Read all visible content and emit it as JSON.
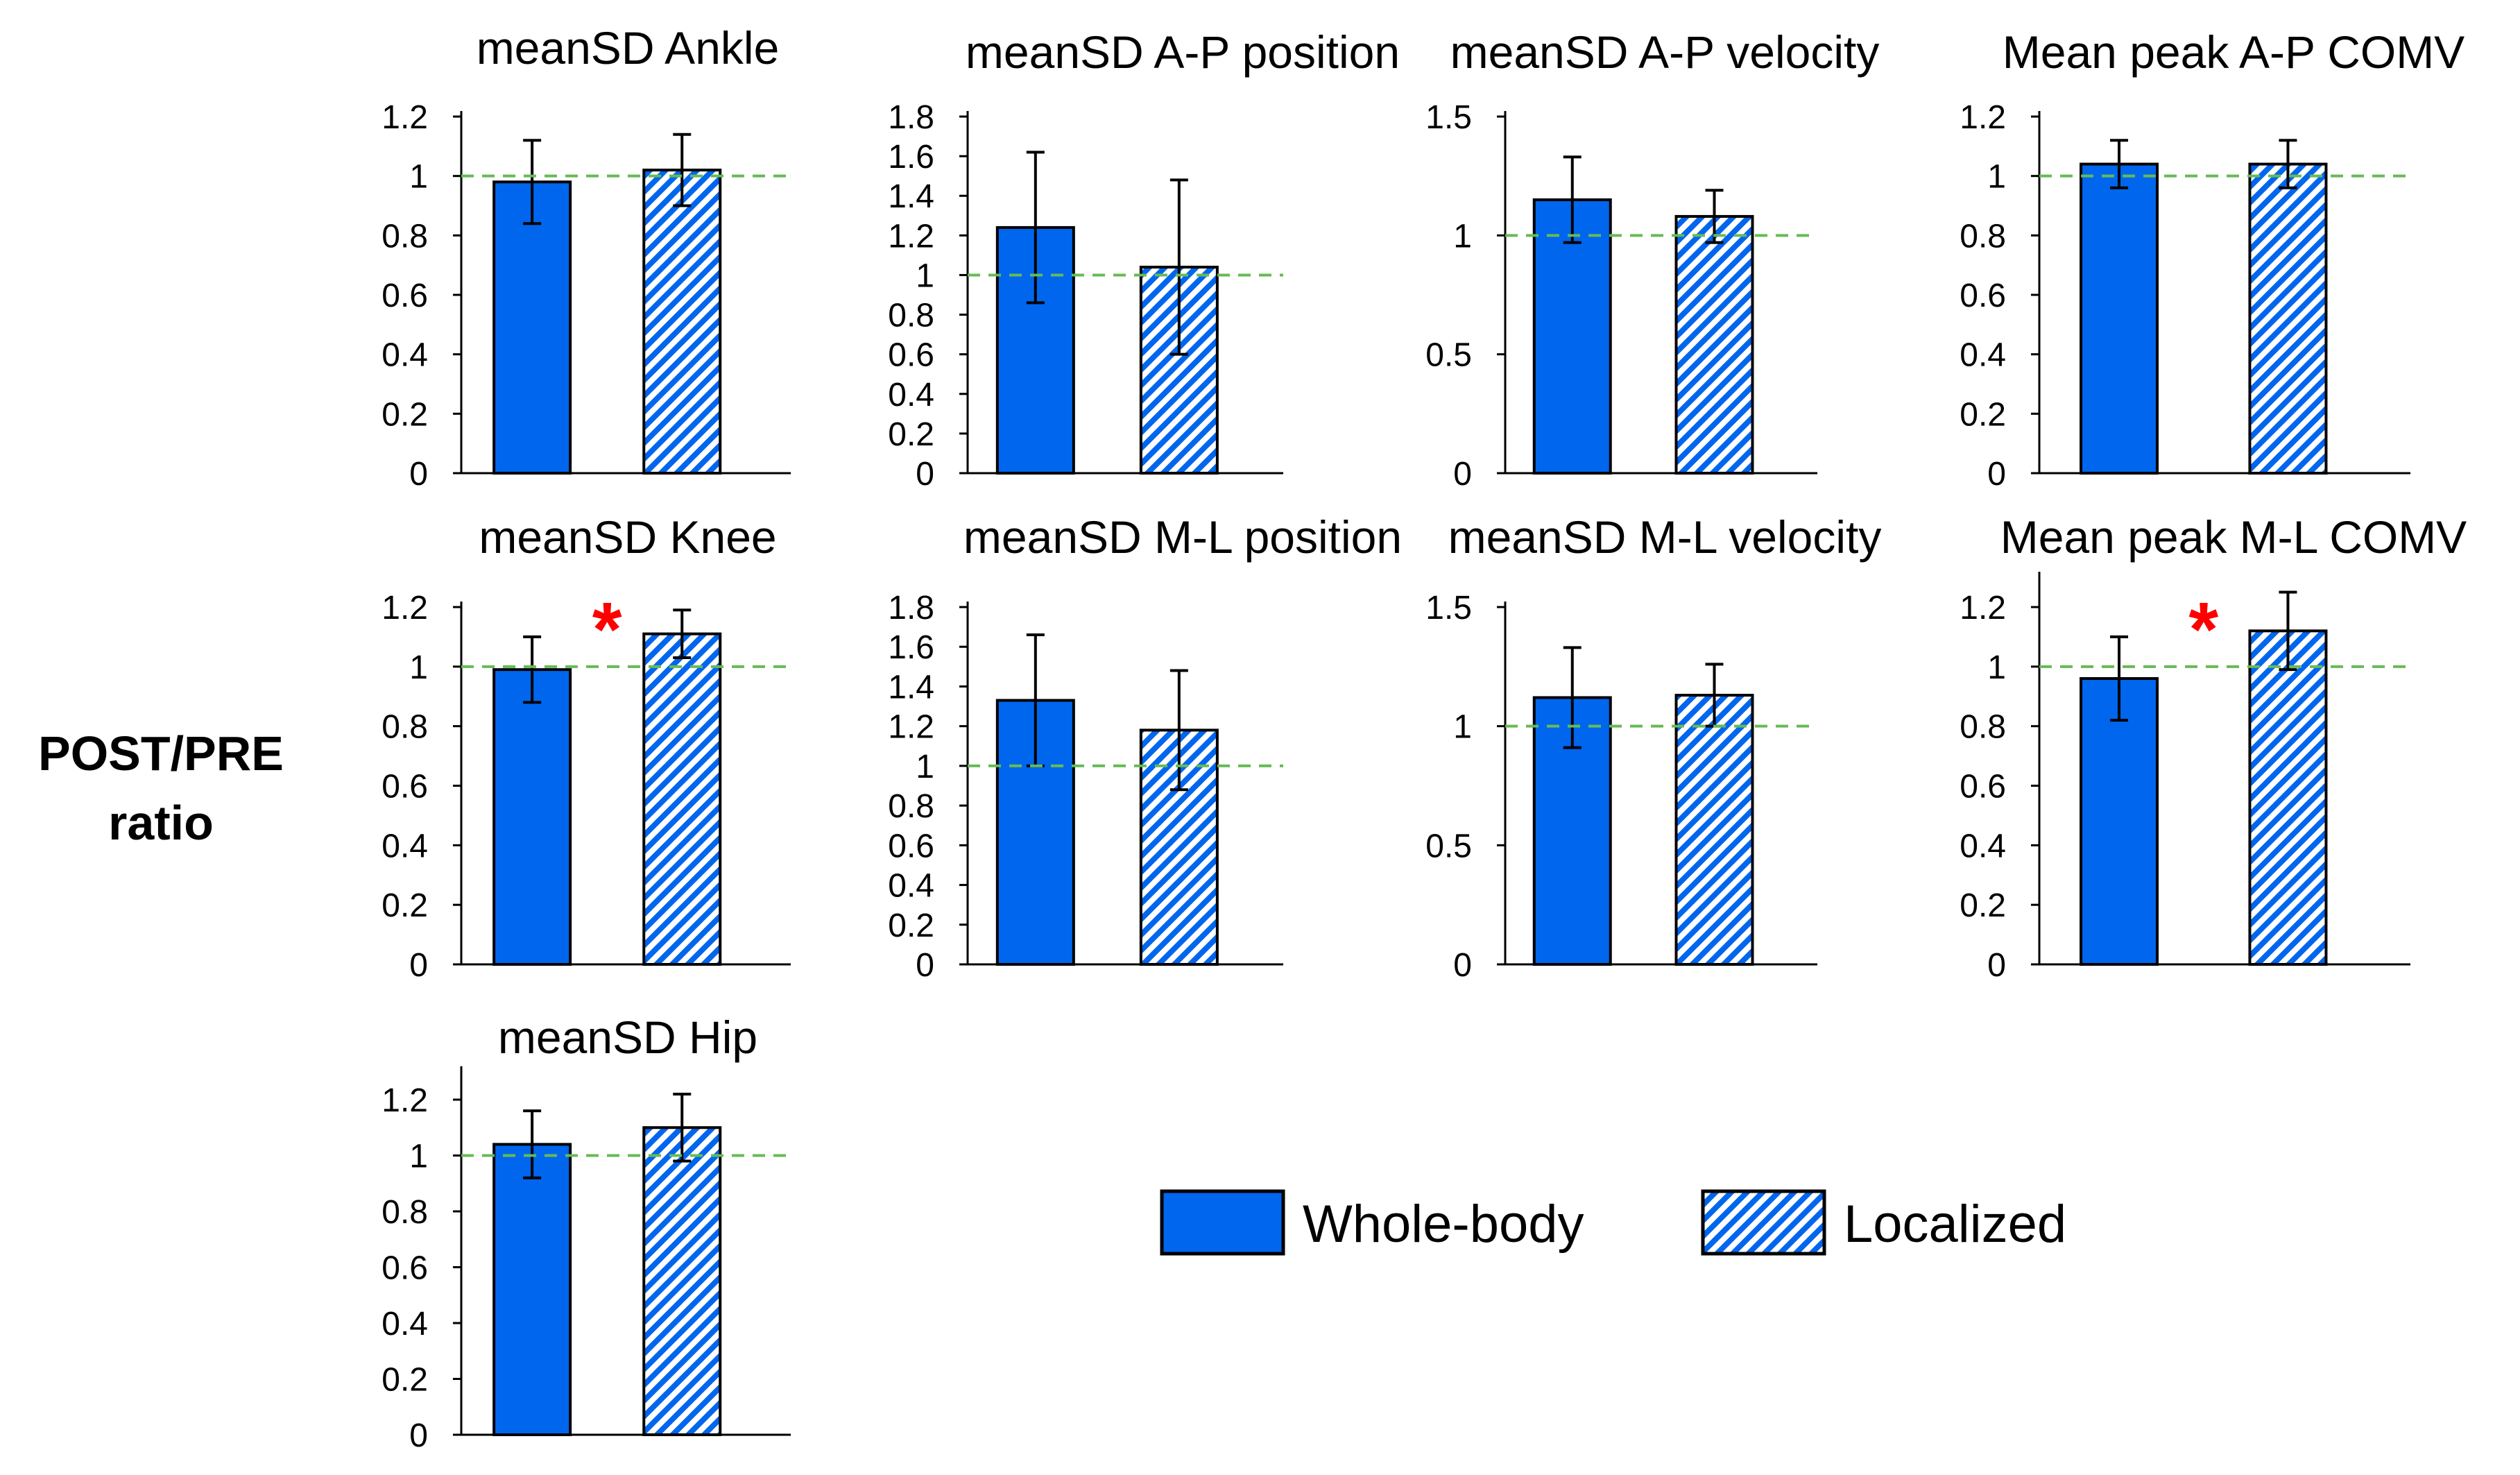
{
  "figure": {
    "ylabel_line1": "POST/PRE",
    "ylabel_line2": "ratio",
    "colors": {
      "whole_body": "#0066ee",
      "localized_stripe": "#0066ee",
      "reference_line": "#66bb55",
      "significance": "#ff0000"
    }
  },
  "legend": [
    {
      "name": "Whole-body",
      "style": "solid"
    },
    {
      "name": "Localized",
      "style": "hatched"
    }
  ],
  "chart_data": [
    {
      "type": "bar",
      "title": "meanSD Ankle",
      "categories": [
        "Whole-body",
        "Localized"
      ],
      "values": [
        0.98,
        1.02
      ],
      "errors": [
        0.14,
        0.12
      ],
      "ylim": [
        0,
        1.2
      ],
      "ticks": [
        0,
        0.2,
        0.4,
        0.6,
        0.8,
        1,
        1.2
      ],
      "reference": 1,
      "significant": false
    },
    {
      "type": "bar",
      "title": "meanSD A-P position",
      "categories": [
        "Whole-body",
        "Localized"
      ],
      "values": [
        1.24,
        1.04
      ],
      "errors": [
        0.38,
        0.44
      ],
      "ylim": [
        0,
        1.8
      ],
      "ticks": [
        0,
        0.2,
        0.4,
        0.6,
        0.8,
        1,
        1.2,
        1.4,
        1.6,
        1.8
      ],
      "reference": 1,
      "significant": false
    },
    {
      "type": "bar",
      "title": "meanSD A-P velocity",
      "categories": [
        "Whole-body",
        "Localized"
      ],
      "values": [
        1.15,
        1.08
      ],
      "errors": [
        0.18,
        0.11
      ],
      "ylim": [
        0,
        1.5
      ],
      "ticks": [
        0,
        0.5,
        1,
        1.5
      ],
      "reference": 1,
      "significant": false
    },
    {
      "type": "bar",
      "title": "Mean peak A-P COMV",
      "categories": [
        "Whole-body",
        "Localized"
      ],
      "values": [
        1.04,
        1.04
      ],
      "errors": [
        0.08,
        0.08
      ],
      "ylim": [
        0,
        1.2
      ],
      "ticks": [
        0,
        0.2,
        0.4,
        0.6,
        0.8,
        1,
        1.2
      ],
      "reference": 1,
      "significant": false
    },
    {
      "type": "bar",
      "title": "meanSD Knee",
      "categories": [
        "Whole-body",
        "Localized"
      ],
      "values": [
        0.99,
        1.11
      ],
      "errors": [
        0.11,
        0.08
      ],
      "ylim": [
        0,
        1.2
      ],
      "ticks": [
        0,
        0.2,
        0.4,
        0.6,
        0.8,
        1,
        1.2
      ],
      "reference": 1,
      "significant": true,
      "significance_marker": "*"
    },
    {
      "type": "bar",
      "title": "meanSD M-L position",
      "categories": [
        "Whole-body",
        "Localized"
      ],
      "values": [
        1.33,
        1.18
      ],
      "errors": [
        0.33,
        0.3
      ],
      "ylim": [
        0,
        1.8
      ],
      "ticks": [
        0,
        0.2,
        0.4,
        0.6,
        0.8,
        1,
        1.2,
        1.4,
        1.6,
        1.8
      ],
      "reference": 1,
      "significant": false
    },
    {
      "type": "bar",
      "title": "meanSD M-L velocity",
      "categories": [
        "Whole-body",
        "Localized"
      ],
      "values": [
        1.12,
        1.13
      ],
      "errors": [
        0.21,
        0.13
      ],
      "ylim": [
        0,
        1.5
      ],
      "ticks": [
        0,
        0.5,
        1,
        1.5
      ],
      "reference": 1,
      "significant": false
    },
    {
      "type": "bar",
      "title": "Mean peak M-L COMV",
      "categories": [
        "Whole-body",
        "Localized"
      ],
      "values": [
        0.96,
        1.12
      ],
      "errors": [
        0.14,
        0.13
      ],
      "ylim": [
        0,
        1.3
      ],
      "ticks": [
        0,
        0.2,
        0.4,
        0.6,
        0.8,
        1,
        1.2
      ],
      "reference": 1,
      "significant": true,
      "significance_marker": "*"
    },
    {
      "type": "bar",
      "title": "meanSD Hip",
      "categories": [
        "Whole-body",
        "Localized"
      ],
      "values": [
        1.04,
        1.1
      ],
      "errors": [
        0.12,
        0.12
      ],
      "ylim": [
        0,
        1.3
      ],
      "ticks": [
        0,
        0.2,
        0.4,
        0.6,
        0.8,
        1,
        1.2
      ],
      "reference": 1,
      "significant": false
    }
  ]
}
